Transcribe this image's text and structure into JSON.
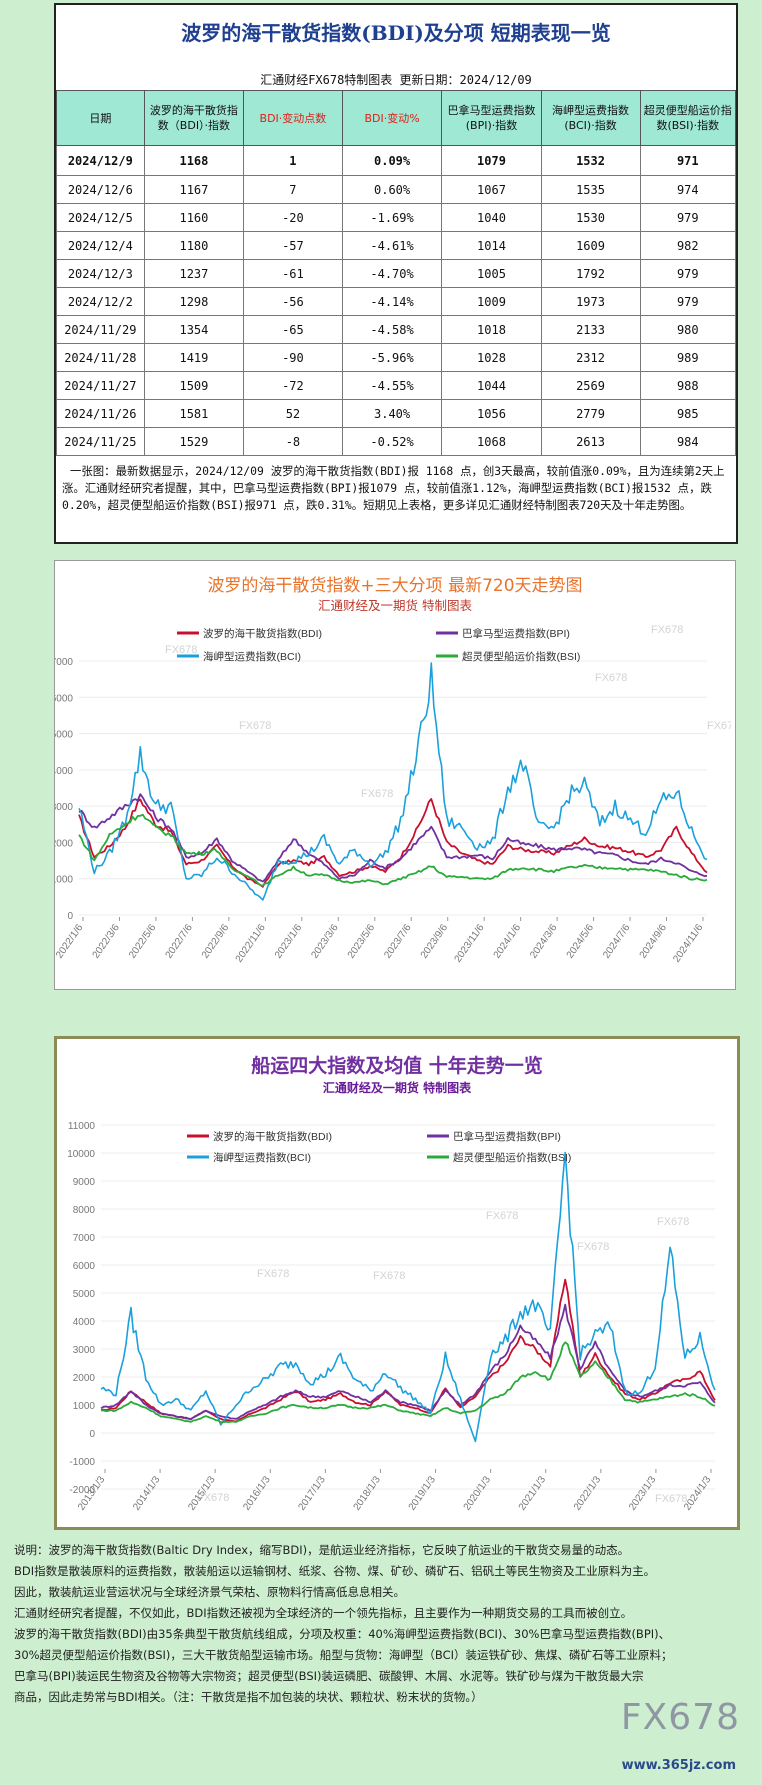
{
  "header": {
    "title": "波罗的海干散货指数(BDI)及分项  短期表现一览",
    "subtitle": "汇通财经FX678特制图表      更新日期：2024/12/09"
  },
  "table": {
    "columns": [
      "日期",
      "波罗的海干散货指数（BDI）·指数",
      "BDI·变动点数",
      "BDI·变动%",
      "巴拿马型运费指数(BPI)·指数",
      "海岬型运费指数(BCI)·指数",
      "超灵便型船运价指数(BSI)·指数"
    ],
    "rows": [
      [
        "2024/12/9",
        "1168",
        "1",
        "0.09%",
        "1079",
        "1532",
        "971"
      ],
      [
        "2024/12/6",
        "1167",
        "7",
        "0.60%",
        "1067",
        "1535",
        "974"
      ],
      [
        "2024/12/5",
        "1160",
        "-20",
        "-1.69%",
        "1040",
        "1530",
        "979"
      ],
      [
        "2024/12/4",
        "1180",
        "-57",
        "-4.61%",
        "1014",
        "1609",
        "982"
      ],
      [
        "2024/12/3",
        "1237",
        "-61",
        "-4.70%",
        "1005",
        "1792",
        "979"
      ],
      [
        "2024/12/2",
        "1298",
        "-56",
        "-4.14%",
        "1009",
        "1973",
        "979"
      ],
      [
        "2024/11/29",
        "1354",
        "-65",
        "-4.58%",
        "1018",
        "2133",
        "980"
      ],
      [
        "2024/11/28",
        "1419",
        "-90",
        "-5.96%",
        "1028",
        "2312",
        "989"
      ],
      [
        "2024/11/27",
        "1509",
        "-72",
        "-4.55%",
        "1044",
        "2569",
        "988"
      ],
      [
        "2024/11/26",
        "1581",
        "52",
        "3.40%",
        "1056",
        "2779",
        "985"
      ],
      [
        "2024/11/25",
        "1529",
        "-8",
        "-0.52%",
        "1068",
        "2613",
        "984"
      ]
    ],
    "note": "一张图：最新数据显示，2024/12/09 波罗的海干散货指数(BDI)报 1168 点，创3天最高，较前值涨0.09%，且为连续第2天上涨。汇通财经研究者提醒，其中，巴拿马型运费指数(BPI)报1079 点，较前值涨1.12%，海岬型运费指数(BCI)报1532 点，跌0.20%，超灵便型船运价指数(BSI)报971 点，跌0.31%。短期见上表格，更多详见汇通财经特制图表720天及十年走势图。"
  },
  "chart_data": [
    {
      "type": "line",
      "title": "波罗的海干散货指数+三大分项  最新720天走势图",
      "subtitle": "汇通财经及一期货  特制图表",
      "watermark": "FX678",
      "x_ticks": [
        "2022/1/6",
        "2022/3/6",
        "2022/5/6",
        "2022/7/6",
        "2022/9/6",
        "2022/11/6",
        "2023/1/6",
        "2023/3/6",
        "2023/5/6",
        "2023/7/6",
        "2023/9/6",
        "2023/11/6",
        "2024/1/6",
        "2024/3/6",
        "2024/5/6",
        "2024/7/6",
        "2024/9/6",
        "2024/11/6"
      ],
      "ylim": [
        0,
        7000
      ],
      "y_ticks": [
        0,
        1000,
        2000,
        3000,
        4000,
        5000,
        6000,
        7000
      ],
      "series": [
        {
          "name": "波罗的海干散货指数(BDI)",
          "color": "#c8102e",
          "values": [
            2700,
            1600,
            1900,
            2400,
            3200,
            2500,
            2300,
            1400,
            1500,
            1900,
            1350,
            1000,
            800,
            1400,
            1500,
            1400,
            1600,
            1100,
            1200,
            1350,
            1200,
            1600,
            2300,
            3200,
            2000,
            1700,
            1500,
            1400,
            1900,
            1800,
            1750,
            1700,
            1900,
            2100,
            1900,
            1850,
            1750,
            1600,
            1800,
            2400,
            1700,
            1168
          ]
        },
        {
          "name": "巴拿马型运费指数(BPI)",
          "color": "#7030a0",
          "values": [
            2900,
            2400,
            2700,
            3000,
            3300,
            2700,
            2400,
            1600,
            1700,
            2100,
            1500,
            1200,
            900,
            1500,
            2100,
            1700,
            1400,
            1000,
            1100,
            1500,
            1300,
            1550,
            2000,
            2400,
            1600,
            1600,
            1650,
            1550,
            2100,
            1950,
            1900,
            1800,
            1850,
            1800,
            1700,
            1650,
            1500,
            1400,
            1550,
            1450,
            1200,
            1079
          ]
        },
        {
          "name": "海岬型运费指数(BCI)",
          "color": "#1aa0dd",
          "values": [
            3000,
            1200,
            1700,
            2600,
            4400,
            3000,
            3000,
            1000,
            1100,
            1600,
            1200,
            800,
            400,
            1500,
            1500,
            1700,
            2100,
            1400,
            1800,
            1400,
            1700,
            2600,
            4300,
            6500,
            2600,
            2400,
            1900,
            2000,
            3500,
            4200,
            2400,
            2400,
            3300,
            3600,
            2500,
            3000,
            2600,
            2300,
            3100,
            3400,
            2300,
            1532
          ]
        },
        {
          "name": "超灵便型船运价指数(BSI)",
          "color": "#2aaa3a",
          "values": [
            2200,
            1500,
            2200,
            2500,
            2800,
            2400,
            2200,
            1700,
            1700,
            1800,
            1250,
            1100,
            800,
            1100,
            1300,
            1100,
            1100,
            950,
            900,
            950,
            850,
            1000,
            1150,
            1350,
            1050,
            1050,
            1000,
            1000,
            1250,
            1300,
            1250,
            1200,
            1300,
            1350,
            1300,
            1300,
            1250,
            1250,
            1200,
            1100,
            1000,
            971
          ]
        }
      ]
    },
    {
      "type": "line",
      "title": "船运四大指数及均值  十年走势一览",
      "subtitle": "汇通财经及一期货  特制图表",
      "watermark": "FX678",
      "x_ticks": [
        "2013/1/3",
        "2014/1/3",
        "2015/1/3",
        "2016/1/3",
        "2017/1/3",
        "2018/1/3",
        "2019/1/3",
        "2020/1/3",
        "2021/1/3",
        "2022/1/3",
        "2023/1/3",
        "2024/1/3"
      ],
      "ylim": [
        -2000,
        11000
      ],
      "y_ticks": [
        -2000,
        -1000,
        0,
        1000,
        2000,
        3000,
        4000,
        5000,
        6000,
        7000,
        8000,
        9000,
        10000,
        11000
      ],
      "series": [
        {
          "name": "波罗的海干散货指数(BDI)",
          "color": "#c8102e",
          "values": [
            800,
            900,
            1500,
            1100,
            700,
            600,
            500,
            800,
            500,
            400,
            700,
            900,
            1200,
            1500,
            1100,
            1200,
            1400,
            1100,
            1000,
            1500,
            1000,
            900,
            700,
            1600,
            900,
            1300,
            2000,
            2500,
            3400,
            3000,
            2400,
            5600,
            2000,
            2800,
            2000,
            1400,
            1200,
            1400,
            1800,
            1900,
            2200,
            1168
          ]
        },
        {
          "name": "巴拿马型运费指数(BPI)",
          "color": "#7030a0",
          "values": [
            900,
            1000,
            1500,
            1000,
            700,
            600,
            500,
            800,
            600,
            500,
            800,
            1000,
            1300,
            1500,
            1300,
            1300,
            1500,
            1300,
            1100,
            1500,
            1100,
            1000,
            800,
            1500,
            1000,
            1400,
            2200,
            2800,
            3800,
            3300,
            2700,
            4500,
            2300,
            3200,
            2200,
            1500,
            1300,
            1500,
            1700,
            1700,
            1800,
            1079
          ]
        },
        {
          "name": "海岬型运费指数(BCI)",
          "color": "#1aa0dd",
          "values": [
            1600,
            1400,
            4200,
            2000,
            1000,
            1200,
            800,
            1500,
            300,
            1000,
            1600,
            1900,
            2400,
            2500,
            1800,
            2100,
            2700,
            1900,
            1500,
            2200,
            1600,
            1200,
            700,
            2700,
            1200,
            -300,
            2800,
            3300,
            4300,
            4600,
            3500,
            10000,
            2800,
            3500,
            3800,
            1500,
            1400,
            2400,
            6500,
            2700,
            3400,
            1532
          ]
        },
        {
          "name": "超灵便型船运价指数(BSI)",
          "color": "#2aaa3a",
          "values": [
            800,
            800,
            1100,
            900,
            600,
            500,
            400,
            600,
            400,
            400,
            600,
            700,
            900,
            1000,
            900,
            900,
            1000,
            900,
            900,
            1000,
            800,
            700,
            600,
            900,
            700,
            800,
            1200,
            1400,
            2000,
            2200,
            1900,
            3300,
            2000,
            2500,
            1900,
            1200,
            1100,
            1200,
            1300,
            1400,
            1300,
            971
          ]
        }
      ]
    }
  ],
  "description": [
    "说明：波罗的海干散货指数(Baltic Dry Index，缩写BDI)，是航运业经济指标，它反映了航运业的干散货交易量的动态。",
    "BDI指数是散装原料的运费指数，散装船运以运输钢材、纸浆、谷物、煤、矿砂、磷矿石、铝矾土等民生物资及工业原料为主。",
    "因此，散装航运业营运状况与全球经济景气荣枯、原物料行情高低息息相关。",
    "汇通财经研究者提醒，不仅如此，BDI指数还被视为全球经济的一个领先指标，且主要作为一种期货交易的工具而被创立。",
    "波罗的海干散货指数(BDI)由35条典型干散货航线组成，分项及权重：40%海岬型运费指数(BCI)、30%巴拿马型运费指数(BPI)、",
    "30%超灵便型船运价指数(BSI)，三大干散货船型运输市场。船型与货物：海岬型（BCI）装运铁矿砂、焦煤、磷矿石等工业原料；",
    "巴拿马(BPI)装运民生物资及谷物等大宗物资；超灵便型(BSI)装运磷肥、碳酸钾、木屑、水泥等。铁矿砂与煤为干散货最大宗",
    "商品，因此走势常与BDI相关。（注：干散货是指不加包装的块状、颗粒状、粉末状的货物。）"
  ],
  "watermark": {
    "main": "FX678",
    "site": "www.365jz.com"
  }
}
